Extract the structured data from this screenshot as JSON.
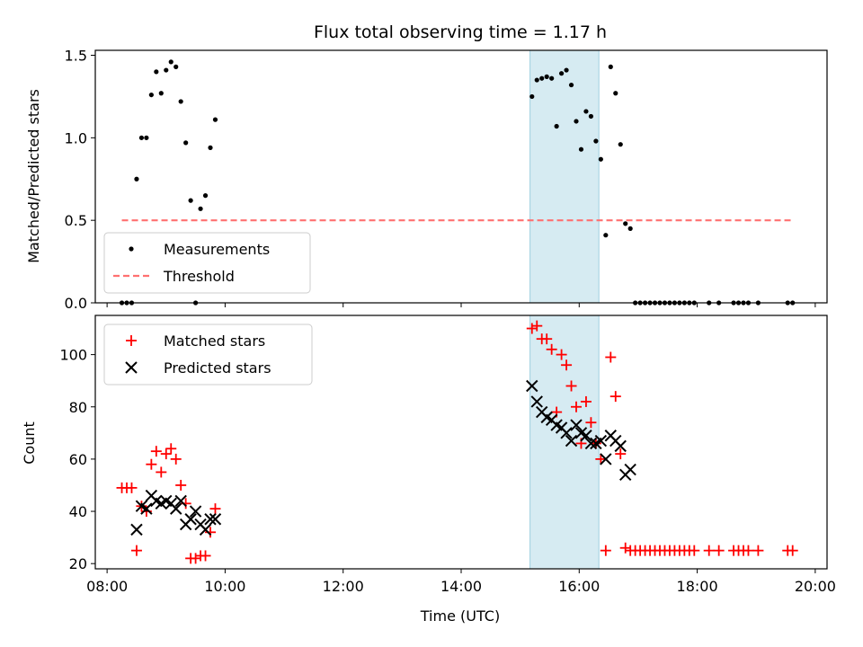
{
  "chart_data": [
    {
      "type": "scatter",
      "title": "Flux total observing time = 1.17 h",
      "xlabel": "",
      "ylabel": "Matched/Predicted stars",
      "xlim": [
        "07:48",
        "20:12"
      ],
      "ylim": [
        0,
        1.53
      ],
      "xticks": [
        "08:00",
        "10:00",
        "12:00",
        "14:00",
        "16:00",
        "18:00",
        "20:00"
      ],
      "xticks_labeled": false,
      "yticks": [
        "0.0",
        "0.5",
        "1.0",
        "1.5"
      ],
      "highlight_span": {
        "start": "15:10",
        "end": "16:20",
        "color": "#add8e6"
      },
      "legend": {
        "placement": "lower-left",
        "entries": [
          "Measurements",
          "Threshold"
        ]
      },
      "series": [
        {
          "name": "Measurements",
          "marker": "dot",
          "color": "#000000",
          "x": [
            "08:15",
            "08:20",
            "08:25",
            "08:30",
            "08:35",
            "08:40",
            "08:45",
            "08:50",
            "08:55",
            "09:00",
            "09:05",
            "09:10",
            "09:15",
            "09:20",
            "09:25",
            "09:30",
            "09:35",
            "09:40",
            "09:45",
            "09:50",
            "15:12",
            "15:17",
            "15:22",
            "15:27",
            "15:32",
            "15:37",
            "15:42",
            "15:47",
            "15:52",
            "15:57",
            "16:02",
            "16:07",
            "16:12",
            "16:17",
            "16:22",
            "16:27",
            "16:32",
            "16:37",
            "16:42",
            "16:47",
            "16:52",
            "16:57",
            "17:02",
            "17:07",
            "17:12",
            "17:17",
            "17:22",
            "17:27",
            "17:32",
            "17:37",
            "17:42",
            "17:47",
            "17:52",
            "17:57",
            "18:12",
            "18:22",
            "18:37",
            "18:42",
            "18:47",
            "18:52",
            "19:02",
            "19:32",
            "19:37"
          ],
          "y": [
            0.0,
            0.0,
            0.0,
            0.75,
            1.0,
            1.0,
            1.26,
            1.4,
            1.27,
            1.41,
            1.46,
            1.43,
            1.22,
            0.97,
            0.62,
            0.0,
            0.57,
            0.65,
            0.94,
            1.11,
            1.25,
            1.35,
            1.36,
            1.37,
            1.36,
            1.07,
            1.39,
            1.41,
            1.32,
            1.1,
            0.93,
            1.16,
            1.13,
            0.98,
            0.87,
            0.41,
            1.43,
            1.27,
            0.96,
            0.48,
            0.45,
            0.0,
            0.0,
            0.0,
            0.0,
            0.0,
            0.0,
            0.0,
            0.0,
            0.0,
            0.0,
            0.0,
            0.0,
            0.0,
            0.0,
            0.0,
            0.0,
            0.0,
            0.0,
            0.0,
            0.0,
            0.0,
            0.0
          ]
        },
        {
          "name": "Threshold",
          "style": "dashed",
          "color": "#ff7070",
          "x": [
            "08:15",
            "19:37"
          ],
          "y": [
            0.5,
            0.5
          ]
        }
      ]
    },
    {
      "type": "scatter",
      "title": "",
      "xlabel": "Time (UTC)",
      "ylabel": "Count",
      "xlim": [
        "07:48",
        "20:12"
      ],
      "ylim": [
        18,
        115
      ],
      "xticks": [
        "08:00",
        "10:00",
        "12:00",
        "14:00",
        "16:00",
        "18:00",
        "20:00"
      ],
      "yticks": [
        "20",
        "40",
        "60",
        "80",
        "100"
      ],
      "highlight_span": {
        "start": "15:10",
        "end": "16:20",
        "color": "#add8e6"
      },
      "legend": {
        "placement": "upper-left",
        "entries": [
          "Matched stars",
          "Predicted stars"
        ]
      },
      "series": [
        {
          "name": "Matched stars",
          "marker": "plus",
          "color": "#ff0000",
          "x": [
            "08:15",
            "08:20",
            "08:25",
            "08:30",
            "08:35",
            "08:40",
            "08:45",
            "08:50",
            "08:55",
            "09:00",
            "09:05",
            "09:10",
            "09:15",
            "09:20",
            "09:25",
            "09:30",
            "09:35",
            "09:40",
            "09:45",
            "09:50",
            "15:12",
            "15:17",
            "15:22",
            "15:27",
            "15:32",
            "15:37",
            "15:42",
            "15:47",
            "15:52",
            "15:57",
            "16:02",
            "16:07",
            "16:12",
            "16:17",
            "16:22",
            "16:27",
            "16:32",
            "16:37",
            "16:42",
            "16:47",
            "16:52",
            "16:57",
            "17:02",
            "17:07",
            "17:12",
            "17:17",
            "17:22",
            "17:27",
            "17:32",
            "17:37",
            "17:42",
            "17:47",
            "17:52",
            "17:57",
            "18:12",
            "18:22",
            "18:37",
            "18:42",
            "18:47",
            "18:52",
            "19:02",
            "19:32",
            "19:37"
          ],
          "y": [
            49,
            49,
            49,
            25,
            42,
            40,
            58,
            63,
            55,
            62,
            64,
            60,
            50,
            43,
            22,
            22,
            23,
            23,
            32,
            41,
            110,
            111,
            106,
            106,
            102,
            78,
            100,
            96,
            88,
            80,
            66,
            82,
            74,
            66,
            60,
            25,
            99,
            84,
            62,
            26,
            25,
            25,
            25,
            25,
            25,
            25,
            25,
            25,
            25,
            25,
            25,
            25,
            25,
            25,
            25,
            25,
            25,
            25,
            25,
            25,
            25,
            25,
            25
          ]
        },
        {
          "name": "Predicted stars",
          "marker": "x",
          "color": "#000000",
          "x": [
            "08:30",
            "08:35",
            "08:40",
            "08:45",
            "08:50",
            "08:55",
            "09:00",
            "09:05",
            "09:10",
            "09:15",
            "09:20",
            "09:25",
            "09:30",
            "09:35",
            "09:40",
            "09:45",
            "09:50",
            "15:12",
            "15:17",
            "15:22",
            "15:27",
            "15:32",
            "15:37",
            "15:42",
            "15:47",
            "15:52",
            "15:57",
            "16:02",
            "16:07",
            "16:12",
            "16:17",
            "16:22",
            "16:27",
            "16:32",
            "16:37",
            "16:42",
            "16:47",
            "16:52"
          ],
          "y": [
            33,
            42,
            41,
            46,
            44,
            43,
            44,
            43,
            41,
            44,
            35,
            37,
            40,
            35,
            33,
            37,
            37,
            88,
            82,
            78,
            76,
            75,
            73,
            72,
            70,
            67,
            73,
            70,
            69,
            66,
            66,
            67,
            60,
            69,
            67,
            65,
            54,
            56
          ]
        }
      ]
    }
  ]
}
